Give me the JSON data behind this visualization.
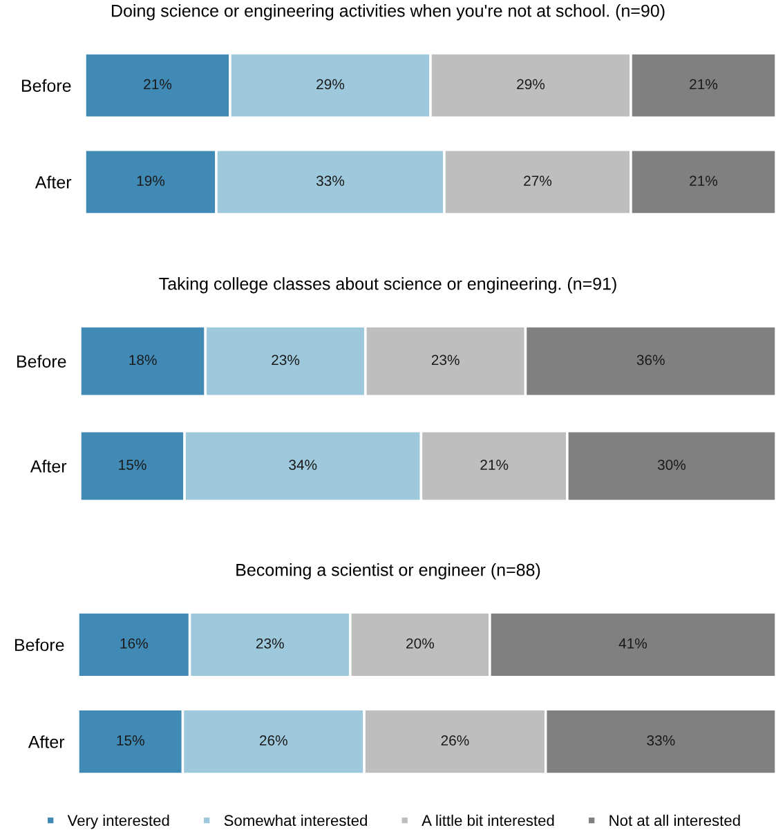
{
  "chart_data": [
    {
      "type": "bar",
      "orientation": "horizontal",
      "stacked": true,
      "title": "Doing science or engineering activities when you're not at school. (n=90)",
      "categories": [
        "Before",
        "After"
      ],
      "tick_labels": "y",
      "legend": false,
      "grid": false,
      "series": [
        {
          "color": "#418ab5",
          "values": [
            21,
            19
          ],
          "value_labels": [
            "21%",
            "19%"
          ]
        },
        {
          "color": "#9ec8dc",
          "values": [
            29,
            33
          ],
          "value_labels": [
            "29%",
            "33%"
          ]
        },
        {
          "color": "#bebebe",
          "values": [
            29,
            27
          ],
          "value_labels": [
            "29%",
            "27%"
          ]
        },
        {
          "color": "#808080",
          "values": [
            21,
            21
          ],
          "value_labels": [
            "21%",
            "21%"
          ]
        }
      ]
    },
    {
      "type": "bar",
      "orientation": "horizontal",
      "stacked": true,
      "title": "Taking college classes about science or engineering. (n=91)",
      "categories": [
        "Before",
        "After"
      ],
      "tick_labels": "y",
      "legend": false,
      "grid": false,
      "series": [
        {
          "color": "#418ab5",
          "values": [
            18,
            15
          ],
          "value_labels": [
            "18%",
            "15%"
          ]
        },
        {
          "color": "#9ec8dc",
          "values": [
            23,
            34
          ],
          "value_labels": [
            "23%",
            "34%"
          ]
        },
        {
          "color": "#bebebe",
          "values": [
            23,
            21
          ],
          "value_labels": [
            "23%",
            "21%"
          ]
        },
        {
          "color": "#808080",
          "values": [
            36,
            30
          ],
          "value_labels": [
            "36%",
            "30%"
          ]
        }
      ]
    },
    {
      "type": "bar",
      "orientation": "horizontal",
      "stacked": true,
      "title": "Becoming a scientist or engineer (n=88)",
      "categories": [
        "Before",
        "After"
      ],
      "tick_labels": "y",
      "legend": "bottom",
      "grid": false,
      "series": [
        {
          "name": "Very interested",
          "color": "#418ab5",
          "values": [
            16,
            15
          ],
          "value_labels": [
            "16%",
            "15%"
          ]
        },
        {
          "name": "Somewhat interested",
          "color": "#9ec8dc",
          "values": [
            23,
            26
          ],
          "value_labels": [
            "23%",
            "26%"
          ]
        },
        {
          "name": "A little bit interested",
          "color": "#bebebe",
          "values": [
            20,
            26
          ],
          "value_labels": [
            "20%",
            "26%"
          ]
        },
        {
          "name": "Not at all interested",
          "color": "#808080",
          "values": [
            41,
            33
          ],
          "value_labels": [
            "41%",
            "33%"
          ]
        }
      ]
    }
  ]
}
